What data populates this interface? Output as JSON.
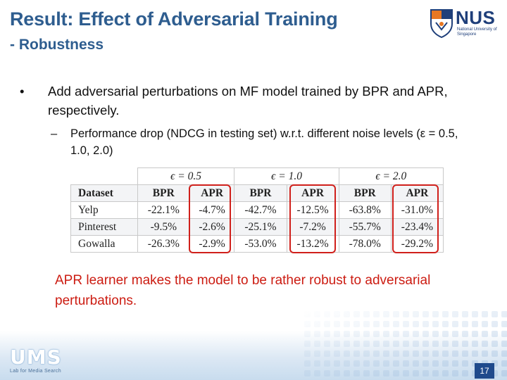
{
  "slide": {
    "title": "Result: Effect of Adversarial Training",
    "subtitle": "- Robustness",
    "page_number": "17"
  },
  "logo": {
    "name": "NUS",
    "tagline": "National University of Singapore"
  },
  "footer_logo": {
    "name": "UMS",
    "tagline": "Lab for Media Search"
  },
  "bullet": {
    "marker": "•",
    "text": "Add adversarial perturbations on MF model trained by BPR and APR, respectively."
  },
  "sub_bullet": {
    "marker": "–",
    "text": "Performance drop (NDCG in testing set) w.r.t. different noise levels (ε = 0.5, 1.0, 2.0)"
  },
  "table": {
    "epsilon_headers": [
      "ϵ = 0.5",
      "ϵ = 1.0",
      "ϵ = 2.0"
    ],
    "columns": [
      "Dataset",
      "BPR",
      "APR",
      "BPR",
      "APR",
      "BPR",
      "APR"
    ],
    "rows": [
      [
        "Yelp",
        "-22.1%",
        "-4.7%",
        "-42.7%",
        "-12.5%",
        "-63.8%",
        "-31.0%"
      ],
      [
        "Pinterest",
        "-9.5%",
        "-2.6%",
        "-25.1%",
        "-7.2%",
        "-55.7%",
        "-23.4%"
      ],
      [
        "Gowalla",
        "-26.3%",
        "-2.9%",
        "-53.0%",
        "-13.2%",
        "-78.0%",
        "-29.2%"
      ]
    ]
  },
  "conclusion": "APR learner makes the model to be rather robust to adversarial perturbations.",
  "colors": {
    "title": "#2e5d8f",
    "highlight": "#d0201b",
    "conclusion_text": "#cc1c12",
    "page_badge": "#1f4a8c"
  }
}
